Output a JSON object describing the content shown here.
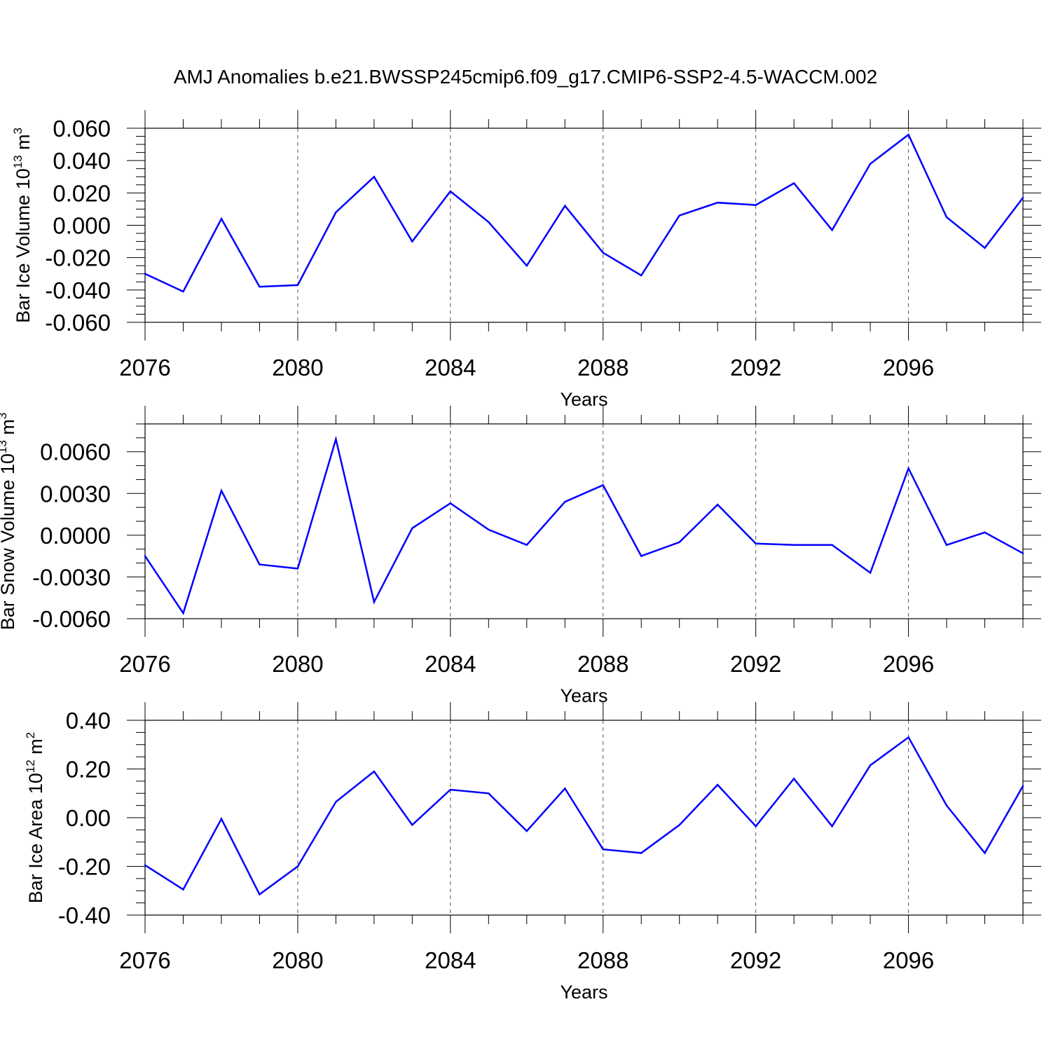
{
  "title": "AMJ Anomalies b.e21.BWSSP245cmip6.f09_g17.CMIP6-SSP2-4.5-WACCM.002",
  "colors": {
    "line": "#0000ff",
    "axis": "#000000",
    "grid": "#555555"
  },
  "chart_data": [
    {
      "type": "line",
      "ylabel_main": "Bar Ice Volume 10",
      "ylabel_sup": "13",
      "ylabel_unit": " m",
      "ylabel_unit_sup": "3",
      "xlabel": "Years",
      "xlim": [
        2076,
        2099
      ],
      "ylim": [
        -0.06,
        0.06
      ],
      "x_ticks": [
        2076,
        2080,
        2084,
        2088,
        2092,
        2096
      ],
      "x_tick_labels": [
        "2076",
        "2080",
        "2084",
        "2088",
        "2092",
        "2096"
      ],
      "y_ticks": [
        -0.06,
        -0.04,
        -0.02,
        0.0,
        0.02,
        0.04,
        0.06
      ],
      "y_tick_labels": [
        "-0.060",
        "-0.040",
        "-0.020",
        "0.000",
        "0.020",
        "0.040",
        "0.060"
      ],
      "y_minor_step": 0.005,
      "x": [
        2076,
        2077,
        2078,
        2079,
        2080,
        2081,
        2082,
        2083,
        2084,
        2085,
        2086,
        2087,
        2088,
        2089,
        2090,
        2091,
        2092,
        2093,
        2094,
        2095,
        2096,
        2097,
        2098,
        2099
      ],
      "values": [
        -0.03,
        -0.041,
        0.004,
        -0.038,
        -0.037,
        0.008,
        0.03,
        -0.01,
        0.021,
        0.002,
        -0.025,
        0.012,
        -0.017,
        -0.031,
        0.006,
        0.014,
        0.0125,
        0.026,
        -0.003,
        0.038,
        0.056,
        0.005,
        -0.014,
        0.017
      ]
    },
    {
      "type": "line",
      "ylabel_main": "Bar Snow Volume 10",
      "ylabel_sup": "13",
      "ylabel_unit": " m",
      "ylabel_unit_sup": "3",
      "xlabel": "Years",
      "xlim": [
        2076,
        2099
      ],
      "ylim": [
        -0.006,
        0.008
      ],
      "x_ticks": [
        2076,
        2080,
        2084,
        2088,
        2092,
        2096
      ],
      "x_tick_labels": [
        "2076",
        "2080",
        "2084",
        "2088",
        "2092",
        "2096"
      ],
      "y_ticks": [
        -0.006,
        -0.003,
        0.0,
        0.003,
        0.006
      ],
      "y_tick_labels": [
        "-0.0060",
        "-0.0030",
        "0.0000",
        "0.0030",
        "0.0060"
      ],
      "y_minor_step": 0.001,
      "x": [
        2076,
        2077,
        2078,
        2079,
        2080,
        2081,
        2082,
        2083,
        2084,
        2085,
        2086,
        2087,
        2088,
        2089,
        2090,
        2091,
        2092,
        2093,
        2094,
        2095,
        2096,
        2097,
        2098,
        2099
      ],
      "values": [
        -0.0015,
        -0.0056,
        0.0032,
        -0.0021,
        -0.0024,
        0.0069,
        -0.0048,
        0.0005,
        0.0023,
        0.0004,
        -0.0007,
        0.0024,
        0.0036,
        -0.0015,
        -0.0005,
        0.0022,
        -0.0006,
        -0.0007,
        -0.0007,
        -0.0027,
        0.0048,
        -0.0007,
        0.0002,
        -0.0013
      ]
    },
    {
      "type": "line",
      "ylabel_main": "Bar Ice Area 10",
      "ylabel_sup": "12",
      "ylabel_unit": " m",
      "ylabel_unit_sup": "2",
      "xlabel": "Years",
      "xlim": [
        2076,
        2099
      ],
      "ylim": [
        -0.4,
        0.4
      ],
      "x_ticks": [
        2076,
        2080,
        2084,
        2088,
        2092,
        2096
      ],
      "x_tick_labels": [
        "2076",
        "2080",
        "2084",
        "2088",
        "2092",
        "2096"
      ],
      "y_ticks": [
        -0.4,
        -0.2,
        0.0,
        0.2,
        0.4
      ],
      "y_tick_labels": [
        "-0.40",
        "-0.20",
        "0.00",
        "0.20",
        "0.40"
      ],
      "y_minor_step": 0.05,
      "x": [
        2076,
        2077,
        2078,
        2079,
        2080,
        2081,
        2082,
        2083,
        2084,
        2085,
        2086,
        2087,
        2088,
        2089,
        2090,
        2091,
        2092,
        2093,
        2094,
        2095,
        2096,
        2097,
        2098,
        2099
      ],
      "values": [
        -0.195,
        -0.295,
        -0.005,
        -0.315,
        -0.2,
        0.065,
        0.19,
        -0.03,
        0.115,
        0.1,
        -0.055,
        0.12,
        -0.13,
        -0.145,
        -0.03,
        0.135,
        -0.035,
        0.16,
        -0.035,
        0.215,
        0.33,
        0.05,
        -0.145,
        0.13
      ]
    }
  ]
}
